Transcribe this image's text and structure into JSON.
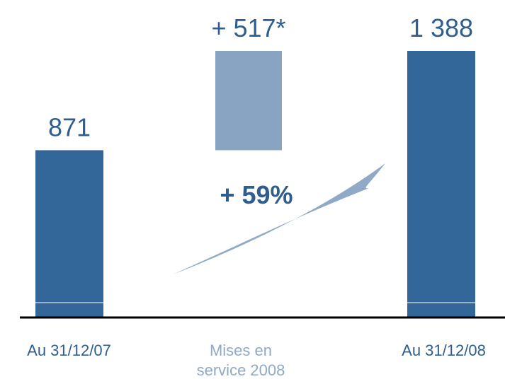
{
  "chart_data": {
    "type": "bar",
    "subtype": "waterfall",
    "categories": [
      "Au 31/12/07",
      "Mises en service 2008",
      "Au 31/12/08"
    ],
    "values": [
      871,
      517,
      1388
    ],
    "data_labels": [
      "871",
      "+ 517*",
      "1 388"
    ],
    "growth_annotation": "+ 59%",
    "ylim": [
      0,
      1600
    ],
    "grid": false,
    "legend": "none",
    "colors": {
      "total_bar": "#336699",
      "increment_bar": "#88A4C2",
      "total_text": "#2E5E8F",
      "increment_text": "#2E5E8F",
      "increment_category_text": "#8FA9C6",
      "growth_text": "#2E5E8F",
      "arrow": "#8FA9C6",
      "axis": "#000000"
    }
  },
  "categories_display": [
    {
      "lines": [
        "Au 31/12/07"
      ]
    },
    {
      "lines": [
        "Mises en",
        "service 2008"
      ]
    },
    {
      "lines": [
        "Au 31/12/08"
      ]
    }
  ]
}
